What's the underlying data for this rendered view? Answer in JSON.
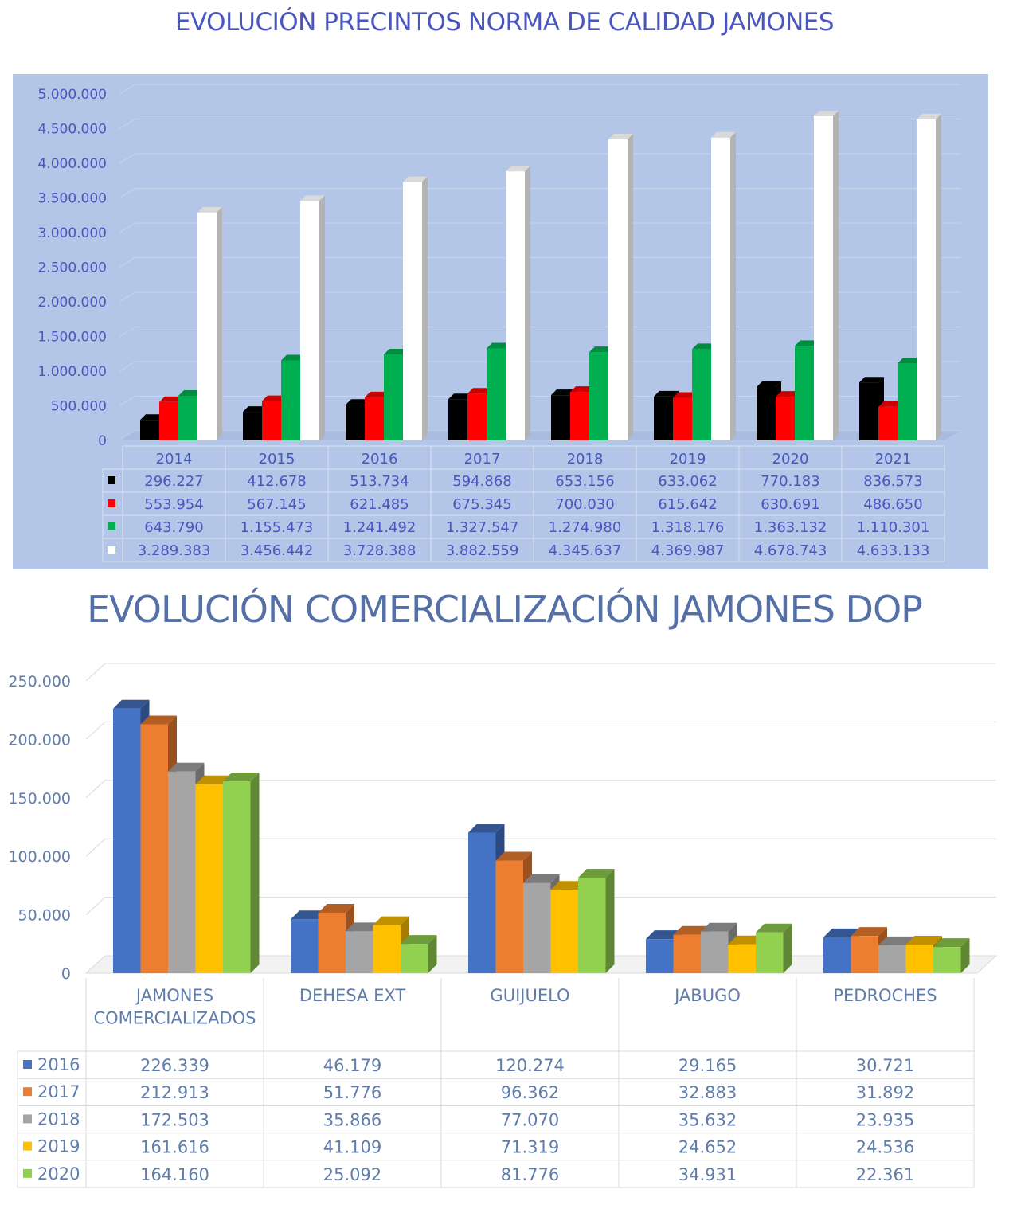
{
  "chart_data": [
    {
      "type": "bar",
      "title": "EVOLUCIÓN PRECINTOS NORMA DE CALIDAD JAMONES",
      "categories": [
        "2014",
        "2015",
        "2016",
        "2017",
        "2018",
        "2019",
        "2020",
        "2021"
      ],
      "ylim": [
        0,
        5000000
      ],
      "yticks": [
        "0",
        "500.000",
        "1.000.000",
        "1.500.000",
        "2.000.000",
        "2.500.000",
        "3.000.000",
        "3.500.000",
        "4.000.000",
        "4.500.000",
        "5.000.000"
      ],
      "grid": true,
      "legend": "data-table",
      "series": [
        {
          "color": "#000000",
          "values": [
            296227,
            412678,
            513734,
            594868,
            653156,
            633062,
            770183,
            836573
          ],
          "labels": [
            "296.227",
            "412.678",
            "513.734",
            "594.868",
            "653.156",
            "633.062",
            "770.183",
            "836.573"
          ]
        },
        {
          "color": "#ff0000",
          "values": [
            553954,
            567145,
            621485,
            675345,
            700030,
            615642,
            630691,
            486650
          ],
          "labels": [
            "553.954",
            "567.145",
            "621.485",
            "675.345",
            "700.030",
            "615.642",
            "630.691",
            "486.650"
          ]
        },
        {
          "color": "#00b050",
          "values": [
            643790,
            1155473,
            1241492,
            1327547,
            1274980,
            1318176,
            1363132,
            1110301
          ],
          "labels": [
            "643.790",
            "1.155.473",
            "1.241.492",
            "1.327.547",
            "1.274.980",
            "1.318.176",
            "1.363.132",
            "1.110.301"
          ]
        },
        {
          "color": "#ffffff",
          "values": [
            3289383,
            3456442,
            3728388,
            3882559,
            4345637,
            4369987,
            4678743,
            4633133
          ],
          "labels": [
            "3.289.383",
            "3.456.442",
            "3.728.388",
            "3.882.559",
            "4.345.637",
            "4.369.987",
            "4.678.743",
            "4.633.133"
          ]
        }
      ]
    },
    {
      "type": "bar",
      "title": "EVOLUCIÓN COMERCIALIZACIÓN JAMONES DOP",
      "categories": [
        "JAMONES COMERCIALIZADOS",
        "DEHESA EXT",
        "GUIJUELO",
        "JABUGO",
        "PEDROCHES"
      ],
      "ylim": [
        0,
        250000
      ],
      "yticks": [
        "0",
        "50.000",
        "100.000",
        "150.000",
        "200.000",
        "250.000"
      ],
      "grid": true,
      "legend": "data-table",
      "series": [
        {
          "name": "2016",
          "color": "#4472c4",
          "values": [
            226339,
            46179,
            120274,
            29165,
            30721
          ],
          "labels": [
            "226.339",
            "46.179",
            "120.274",
            "29.165",
            "30.721"
          ]
        },
        {
          "name": "2017",
          "color": "#ed7d31",
          "values": [
            212913,
            51776,
            96362,
            32883,
            31892
          ],
          "labels": [
            "212.913",
            "51.776",
            "96.362",
            "32.883",
            "31.892"
          ]
        },
        {
          "name": "2018",
          "color": "#a5a5a5",
          "values": [
            172503,
            35866,
            77070,
            35632,
            23935
          ],
          "labels": [
            "172.503",
            "35.866",
            "77.070",
            "35.632",
            "23.935"
          ]
        },
        {
          "name": "2019",
          "color": "#ffc000",
          "values": [
            161616,
            41109,
            71319,
            24652,
            24536
          ],
          "labels": [
            "161.616",
            "41.109",
            "71.319",
            "24.652",
            "24.536"
          ]
        },
        {
          "name": "2020",
          "color": "#92d050",
          "values": [
            164160,
            25092,
            81776,
            34931,
            22361
          ],
          "labels": [
            "164.160",
            "25.092",
            "81.776",
            "34.931",
            "22.361"
          ]
        }
      ]
    }
  ]
}
